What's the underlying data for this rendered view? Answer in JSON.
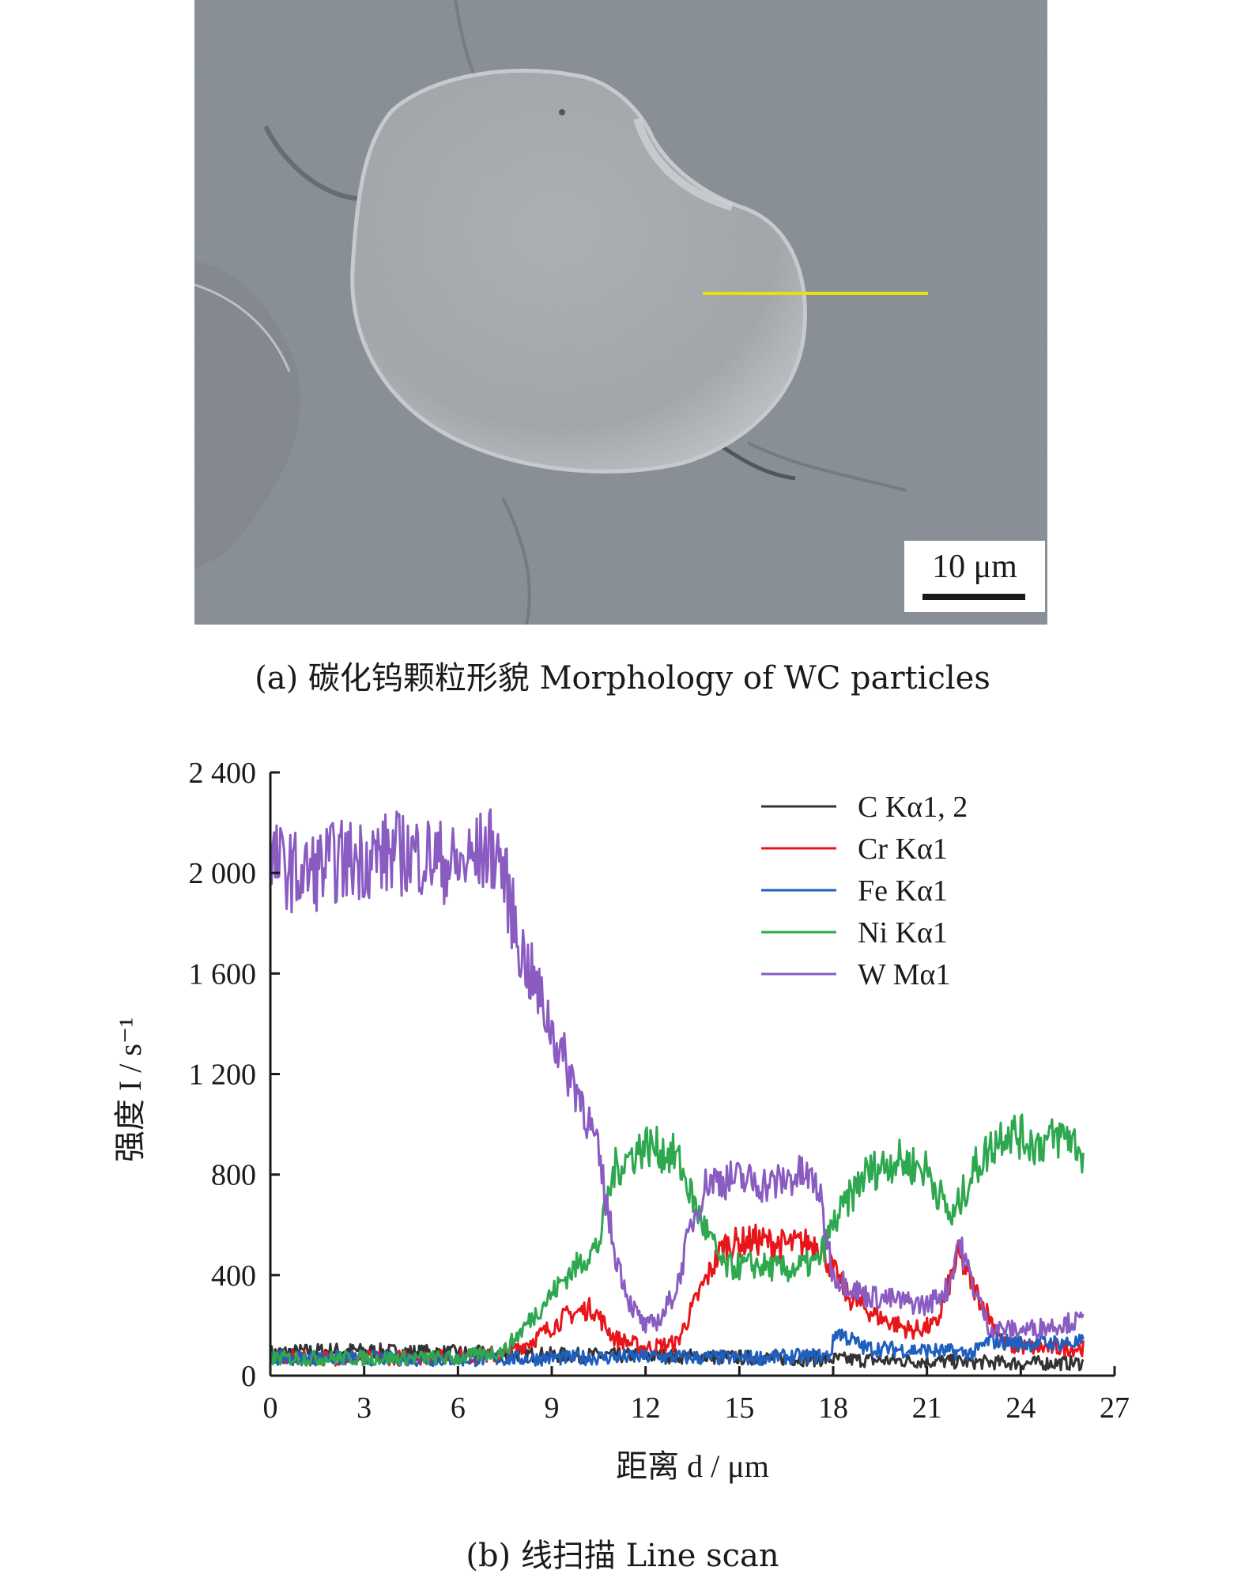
{
  "panel_a": {
    "scale_bar_label": "10 μm",
    "caption": "(a) 碳化钨颗粒形貌 Morphology of WC particles",
    "colors": {
      "scan_line": "#e5e010",
      "background": "#8f959c"
    }
  },
  "panel_b": {
    "caption": "(b) 线扫描 Line scan"
  },
  "chart_data": {
    "type": "line",
    "xlabel": "距离 d / μm",
    "ylabel": "强度 I / s⁻¹",
    "xlim": [
      0,
      27
    ],
    "ylim": [
      0,
      2400
    ],
    "xticks": [
      "0",
      "3",
      "6",
      "9",
      "12",
      "15",
      "18",
      "21",
      "24",
      "27"
    ],
    "yticks": [
      "0",
      "400",
      "800",
      "1 200",
      "1 600",
      "2 000",
      "2 400"
    ],
    "legend_position": "top-right",
    "series": [
      {
        "name": "C Kα1, 2",
        "color": "#333333",
        "x": [
          0,
          2,
          4,
          6,
          8,
          10,
          12,
          14,
          16,
          18,
          20,
          22,
          24,
          26
        ],
        "y": [
          90,
          100,
          95,
          90,
          85,
          80,
          80,
          75,
          70,
          65,
          60,
          55,
          50,
          50
        ]
      },
      {
        "name": "Cr Kα1",
        "color": "#e8151b",
        "x": [
          0,
          3,
          6,
          7.5,
          8.5,
          9.5,
          10.3,
          11,
          12,
          13,
          13.8,
          14.5,
          15.5,
          16.5,
          17.5,
          18.5,
          19.5,
          20.5,
          21.3,
          22,
          22.5,
          23.5,
          24.5,
          26
        ],
        "y": [
          70,
          70,
          75,
          80,
          150,
          240,
          270,
          150,
          110,
          130,
          350,
          520,
          540,
          520,
          530,
          310,
          230,
          180,
          200,
          480,
          350,
          120,
          110,
          110
        ]
      },
      {
        "name": "Fe Kα1",
        "color": "#1f5fbf",
        "x": [
          0,
          3,
          6,
          9,
          12,
          15,
          17.9,
          18.1,
          19,
          21,
          22.5,
          23,
          24,
          26
        ],
        "y": [
          70,
          70,
          65,
          70,
          75,
          70,
          80,
          180,
          110,
          100,
          90,
          140,
          130,
          130
        ]
      },
      {
        "name": "Ni Kα1",
        "color": "#2ea84f",
        "x": [
          0,
          3,
          6,
          7.5,
          8.5,
          9.5,
          10.5,
          11,
          12,
          13,
          13.7,
          14.5,
          15.5,
          16.5,
          17.5,
          18,
          19,
          20,
          21,
          21.8,
          22.5,
          23.5,
          24.5,
          25.5,
          26
        ],
        "y": [
          70,
          70,
          70,
          100,
          250,
          400,
          520,
          820,
          920,
          870,
          640,
          430,
          440,
          420,
          450,
          600,
          800,
          860,
          820,
          620,
          820,
          980,
          920,
          960,
          880
        ]
      },
      {
        "name": "W Mα1",
        "color": "#8a5cc2",
        "x": [
          0,
          1,
          2,
          3,
          4,
          5,
          6,
          7,
          7.3,
          8,
          8.5,
          9,
          9.5,
          10,
          10.5,
          11,
          11.5,
          12,
          12.5,
          13,
          13.5,
          14,
          15,
          16,
          17,
          17.5,
          18,
          19,
          20,
          21,
          21.7,
          22,
          22.5,
          23,
          24,
          25,
          26
        ],
        "y": [
          2050,
          1990,
          2040,
          2060,
          2080,
          2070,
          2020,
          2100,
          2080,
          1700,
          1540,
          1380,
          1220,
          1090,
          870,
          500,
          290,
          190,
          230,
          350,
          620,
          780,
          780,
          760,
          800,
          760,
          400,
          320,
          300,
          280,
          350,
          540,
          350,
          190,
          180,
          200,
          220
        ]
      }
    ]
  }
}
